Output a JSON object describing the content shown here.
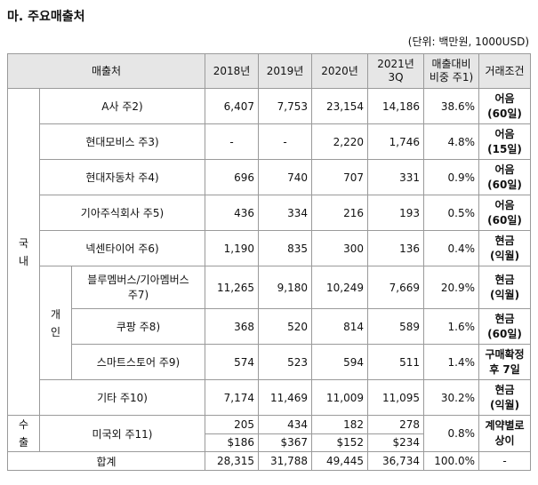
{
  "title": "마. 주요매출처",
  "unit": "(단위: 백만원, 1000USD)",
  "headers": {
    "customer": "매출처",
    "y2018": "2018년",
    "y2019": "2019년",
    "y2020": "2020년",
    "y2021a": "2021년",
    "y2021b": "3Q",
    "ratio_a": "매출대비",
    "ratio_b": "비중 주1)",
    "terms": "거래조건"
  },
  "groups": {
    "domestic_a": "국",
    "domestic_b": "내",
    "individual_a": "개",
    "individual_b": "인",
    "export_a": "수",
    "export_b": "출"
  },
  "rows": [
    {
      "name": "A사 주2)",
      "v2018": "6,407",
      "v2019": "7,753",
      "v2020": "23,154",
      "v2021": "14,186",
      "ratio": "38.6%",
      "term_a": "어음",
      "term_b": "(60일)"
    },
    {
      "name": "현대모비스 주3)",
      "v2018": "-",
      "v2019": "-",
      "v2020": "2,220",
      "v2021": "1,746",
      "ratio": "4.8%",
      "term_a": "어음",
      "term_b": "(15일)"
    },
    {
      "name": "현대자동차 주4)",
      "v2018": "696",
      "v2019": "740",
      "v2020": "707",
      "v2021": "331",
      "ratio": "0.9%",
      "term_a": "어음",
      "term_b": "(60일)"
    },
    {
      "name": "기아주식회사 주5)",
      "v2018": "436",
      "v2019": "334",
      "v2020": "216",
      "v2021": "193",
      "ratio": "0.5%",
      "term_a": "어음",
      "term_b": "(60일)"
    },
    {
      "name": "넥센타이어 주6)",
      "v2018": "1,190",
      "v2019": "835",
      "v2020": "300",
      "v2021": "136",
      "ratio": "0.4%",
      "term_a": "현금",
      "term_b": "(익월)"
    },
    {
      "name_a": "블루멤버스/기아멤버스",
      "name_b": "주7)",
      "v2018": "11,265",
      "v2019": "9,180",
      "v2020": "10,249",
      "v2021": "7,669",
      "ratio": "20.9%",
      "term_a": "현금",
      "term_b": "(익월)"
    },
    {
      "name": "쿠팡 주8)",
      "v2018": "368",
      "v2019": "520",
      "v2020": "814",
      "v2021": "589",
      "ratio": "1.6%",
      "term_a": "현금",
      "term_b": "(60일)"
    },
    {
      "name": "스마트스토어 주9)",
      "v2018": "574",
      "v2019": "523",
      "v2020": "594",
      "v2021": "511",
      "ratio": "1.4%",
      "term_a": "구매확정",
      "term_b": "후 7일"
    },
    {
      "name": "기타 주10)",
      "v2018": "7,174",
      "v2019": "11,469",
      "v2020": "11,009",
      "v2021": "11,095",
      "ratio": "30.2%",
      "term_a": "현금",
      "term_b": "(익월)"
    }
  ],
  "export": {
    "name": "미국외 주11)",
    "krw": {
      "v2018": "205",
      "v2019": "434",
      "v2020": "182",
      "v2021": "278"
    },
    "usd": {
      "v2018": "$186",
      "v2019": "$367",
      "v2020": "$152",
      "v2021": "$234"
    },
    "ratio": "0.8%",
    "term_a": "계약별로",
    "term_b": "상이"
  },
  "total": {
    "label": "합계",
    "v2018": "28,315",
    "v2019": "31,788",
    "v2020": "49,445",
    "v2021": "36,734",
    "ratio": "100.0%",
    "term": "-"
  }
}
